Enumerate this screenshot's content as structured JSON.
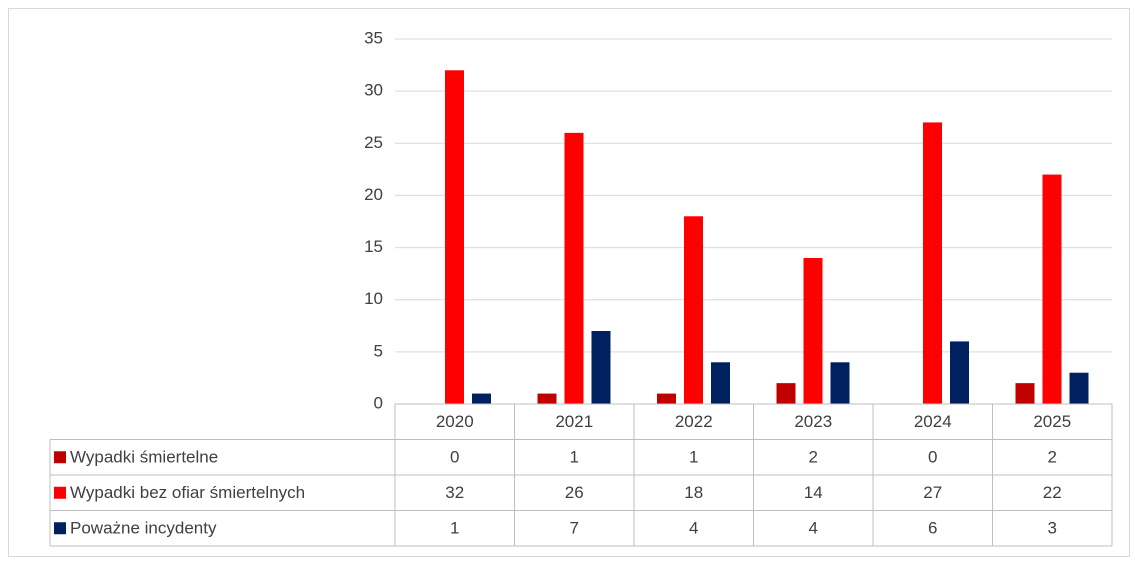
{
  "chart_data": {
    "type": "bar",
    "categories": [
      "2020",
      "2021",
      "2022",
      "2023",
      "2024",
      "2025"
    ],
    "series": [
      {
        "name": "Wypadki śmiertelne",
        "color": "#c00000",
        "values": [
          0,
          1,
          1,
          2,
          0,
          2
        ]
      },
      {
        "name": "Wypadki bez ofiar śmiertelnych",
        "color": "#ff0000",
        "values": [
          32,
          26,
          18,
          14,
          27,
          22
        ]
      },
      {
        "name": "Poważne incydenty",
        "color": "#002060",
        "values": [
          1,
          7,
          4,
          4,
          6,
          3
        ]
      }
    ],
    "ylim": [
      0,
      35
    ],
    "yticks": [
      0,
      5,
      10,
      15,
      20,
      25,
      30,
      35
    ],
    "grid": true,
    "data_table": true
  }
}
